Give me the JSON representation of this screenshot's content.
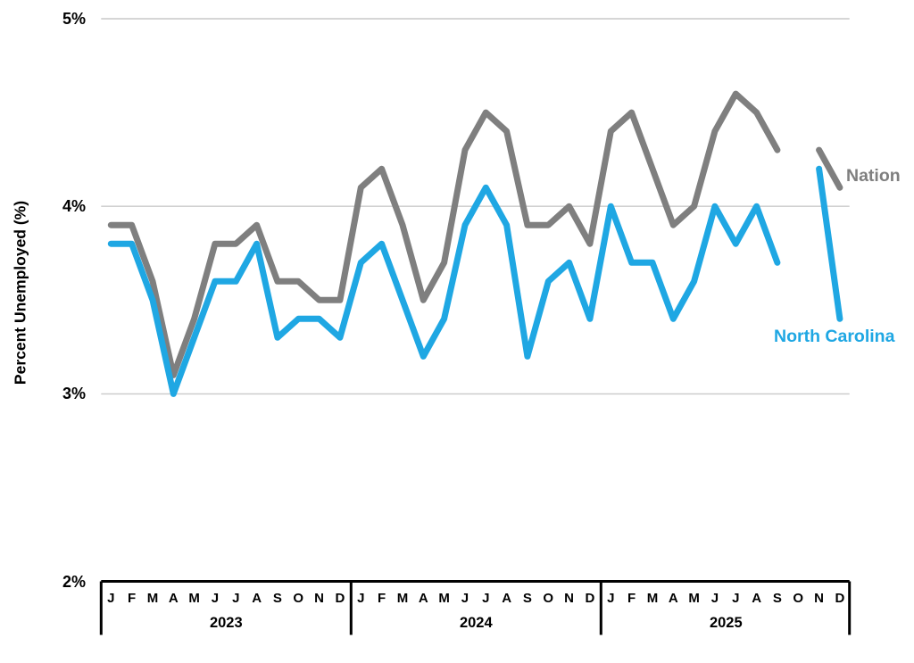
{
  "y_axis": {
    "title": "Percent Unemployed (%)",
    "ticks": [
      {
        "label": "5%",
        "value": 5
      },
      {
        "label": "4%",
        "value": 4
      },
      {
        "label": "3%",
        "value": 3
      },
      {
        "label": "2%",
        "value": 2
      }
    ]
  },
  "x_axis": {
    "month_letters": [
      "J",
      "F",
      "M",
      "A",
      "M",
      "J",
      "J",
      "A",
      "S",
      "O",
      "N",
      "D"
    ],
    "years": [
      "2023",
      "2024",
      "2025"
    ]
  },
  "series_labels": {
    "nation": "Nation",
    "north_carolina": "North Carolina"
  },
  "colors": {
    "nation_line": "#7F7F7F",
    "north_carolina_line": "#1FA7E3",
    "gridline": "#C9C9C9",
    "axis": "#000000",
    "text": "#000000",
    "background": "#FFFFFF"
  },
  "chart_data": {
    "type": "line",
    "ylabel": "Percent Unemployed (%)",
    "ylim": [
      2,
      5
    ],
    "gridlines_at": [
      5,
      4,
      3
    ],
    "legend_position": "right-of-last-points",
    "x_groups": [
      {
        "year": "2023",
        "months": [
          "J",
          "F",
          "M",
          "A",
          "M",
          "J",
          "J",
          "A",
          "S",
          "O",
          "N",
          "D"
        ]
      },
      {
        "year": "2024",
        "months": [
          "J",
          "F",
          "M",
          "A",
          "M",
          "J",
          "J",
          "A",
          "S",
          "O",
          "N",
          "D"
        ]
      },
      {
        "year": "2025",
        "months": [
          "J",
          "F",
          "M",
          "A",
          "M",
          "J",
          "J",
          "A",
          "S",
          "O",
          "N",
          "D"
        ]
      }
    ],
    "gap_note": "both lines have a gap at O 2025 (no data point)",
    "series": [
      {
        "name": "Nation",
        "color": "#7F7F7F",
        "values": [
          3.9,
          3.9,
          3.6,
          3.1,
          3.4,
          3.8,
          3.8,
          3.9,
          3.6,
          3.6,
          3.5,
          3.5,
          4.1,
          4.2,
          3.9,
          3.5,
          3.7,
          4.3,
          4.5,
          4.4,
          3.9,
          3.9,
          4.0,
          3.8,
          4.4,
          4.5,
          4.2,
          3.9,
          4.0,
          4.4,
          4.6,
          4.5,
          4.3,
          null,
          4.3,
          4.1
        ]
      },
      {
        "name": "North Carolina",
        "color": "#1FA7E3",
        "values": [
          3.8,
          3.8,
          3.5,
          3.0,
          3.3,
          3.6,
          3.6,
          3.8,
          3.3,
          3.4,
          3.4,
          3.3,
          3.7,
          3.8,
          3.5,
          3.2,
          3.4,
          3.9,
          4.1,
          3.9,
          3.2,
          3.6,
          3.7,
          3.4,
          4.0,
          3.7,
          3.7,
          3.4,
          3.6,
          4.0,
          3.8,
          4.0,
          3.7,
          null,
          4.2,
          3.4
        ]
      }
    ]
  }
}
